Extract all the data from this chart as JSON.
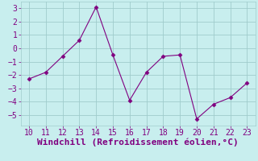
{
  "x": [
    10,
    11,
    12,
    13,
    14,
    15,
    16,
    17,
    18,
    19,
    20,
    21,
    22,
    23
  ],
  "y": [
    -2.3,
    -1.8,
    -0.6,
    0.6,
    3.1,
    -0.5,
    -3.9,
    -1.8,
    -0.6,
    -0.5,
    -5.3,
    -4.2,
    -3.7,
    -2.6
  ],
  "line_color": "#800080",
  "marker_color": "#800080",
  "bg_color": "#c8eeee",
  "grid_color": "#a0cccc",
  "xlabel": "Windchill (Refroidissement éolien,°C)",
  "xlabel_color": "#800080",
  "xlim": [
    9.5,
    23.5
  ],
  "ylim": [
    -5.8,
    3.5
  ],
  "xticks": [
    10,
    11,
    12,
    13,
    14,
    15,
    16,
    17,
    18,
    19,
    20,
    21,
    22,
    23
  ],
  "yticks": [
    -5,
    -4,
    -3,
    -2,
    -1,
    0,
    1,
    2,
    3
  ],
  "tick_color": "#800080",
  "font_color": "#800080",
  "font_size": 7,
  "xlabel_font_size": 8
}
